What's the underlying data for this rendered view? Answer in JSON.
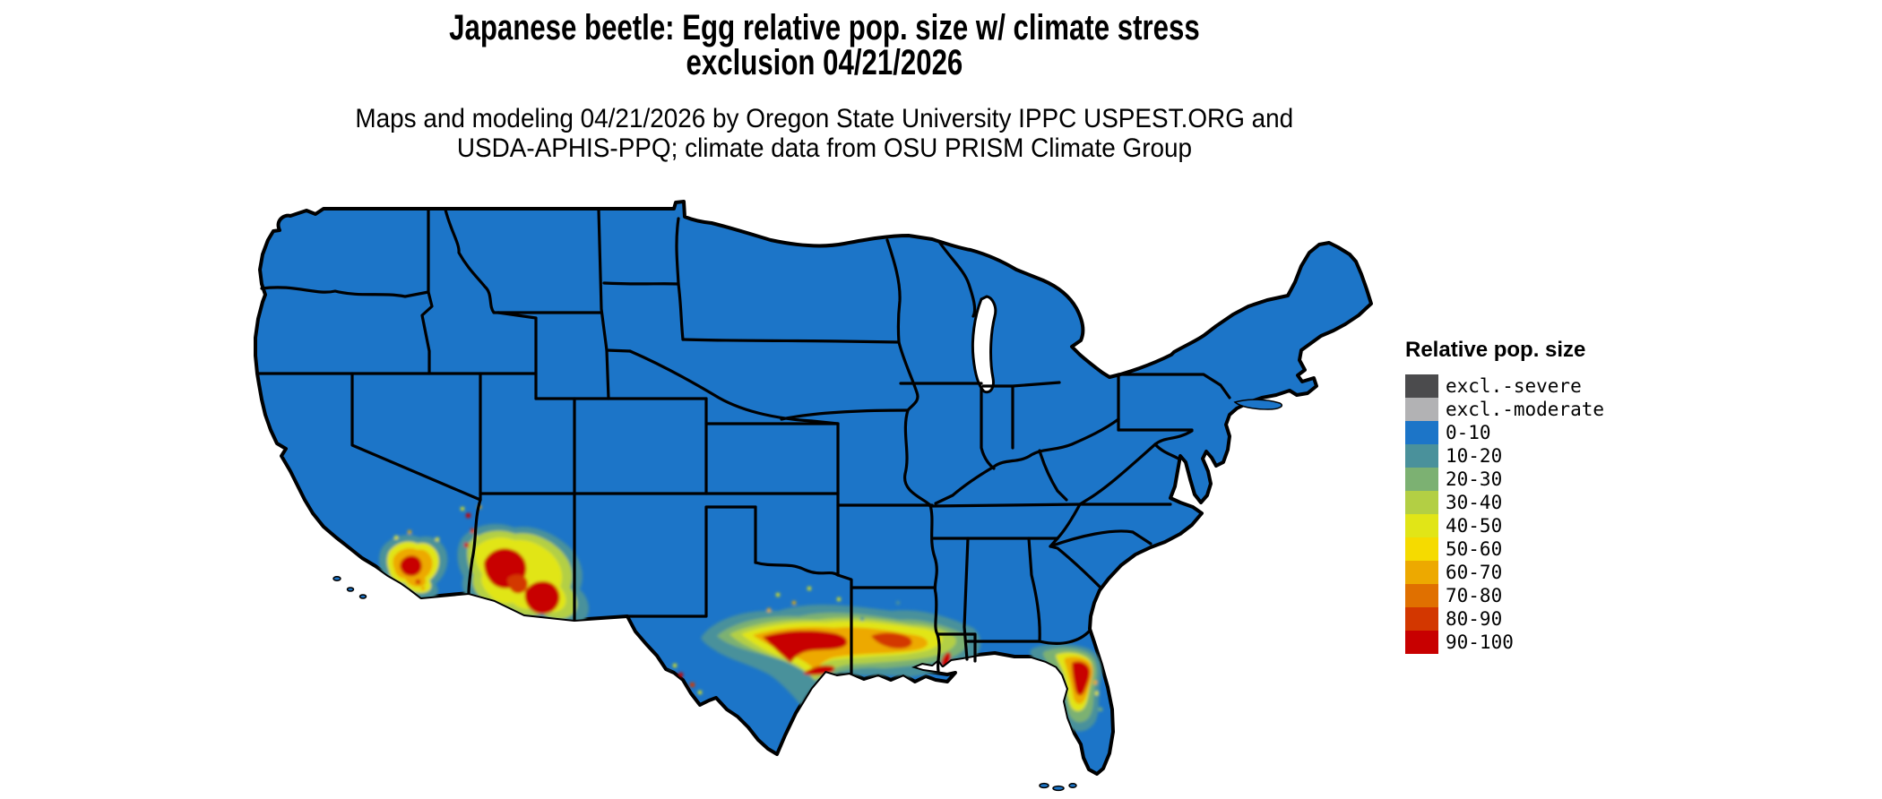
{
  "header": {
    "title_lines": [
      "Japanese beetle: Egg relative pop. size w/ climate stress",
      "exclusion 04/21/2026"
    ],
    "subtitle_lines": [
      "Maps and modeling 04/21/2026 by Oregon State University IPPC USPEST.ORG and",
      "USDA-APHIS-PPQ; climate data from OSU PRISM Climate Group"
    ]
  },
  "legend": {
    "title": "Relative pop. size",
    "entries": [
      {
        "label": "excl.-severe",
        "color": "#4b4b4d"
      },
      {
        "label": "excl.-moderate",
        "color": "#b2b2b4"
      },
      {
        "label": "0-10",
        "color": "#1c75c8"
      },
      {
        "label": "10-20",
        "color": "#4a919b"
      },
      {
        "label": "20-30",
        "color": "#7cb172"
      },
      {
        "label": "30-40",
        "color": "#b3cf44"
      },
      {
        "label": "40-50",
        "color": "#e1e517"
      },
      {
        "label": "50-60",
        "color": "#f5db00"
      },
      {
        "label": "60-70",
        "color": "#eda900"
      },
      {
        "label": "70-80",
        "color": "#e07000"
      },
      {
        "label": "80-90",
        "color": "#d33700"
      },
      {
        "label": "90-100",
        "color": "#c80000"
      }
    ]
  },
  "map": {
    "region": "Contiguous United States",
    "colors": {
      "land": "#1c75c8",
      "water": "#ffffff",
      "border": "#000000"
    },
    "baseline_class": "0-10",
    "hotspots": [
      {
        "area": "Southern California",
        "peak_class": "90-100"
      },
      {
        "area": "Southwestern and central Arizona",
        "peak_class": "90-100"
      },
      {
        "area": "Lower Colorado River valley",
        "peak_class": "80-90"
      },
      {
        "area": "South-central and southeastern Texas",
        "peak_class": "90-100"
      },
      {
        "area": "West Texas Rio Grande corridor",
        "peak_class": "80-90"
      },
      {
        "area": "Southern Louisiana Gulf Coast",
        "peak_class": "90-100"
      },
      {
        "area": "Coastal Alabama / Mississippi",
        "peak_class": "90-100"
      },
      {
        "area": "North-central Florida peninsula",
        "peak_class": "90-100"
      }
    ]
  }
}
